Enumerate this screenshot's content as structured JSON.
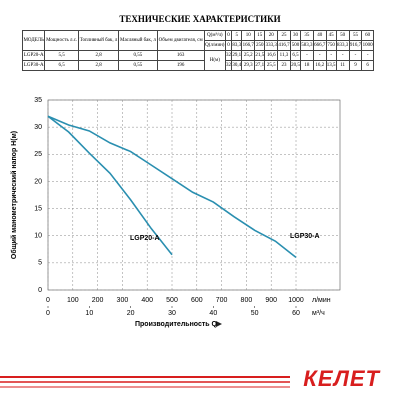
{
  "document": {
    "title": "ТЕХНИЧЕСКИЕ ХАРАКТЕРИСТИКИ",
    "table": {
      "header": [
        "МОДЕЛЬ",
        "Мощность л.с.",
        "Топливный бак, л",
        "Масляный бак, л",
        "Объем двигателя, см"
      ],
      "q_m3h_label": "Q(м³/ч)",
      "q_m3h": [
        "0",
        "5",
        "10",
        "15",
        "20",
        "25",
        "30",
        "35",
        "40",
        "45",
        "50",
        "55",
        "60"
      ],
      "q_lmin_label": "Q(л/мин)",
      "q_lmin": [
        "0",
        "83,3",
        "166,7",
        "250",
        "333,3",
        "416,7",
        "500",
        "583,3",
        "666,7",
        "750",
        "833,3",
        "916,7",
        "1000"
      ],
      "h_label": "H(м)",
      "rows": [
        [
          "LGP20-A",
          "5,5",
          "2,8",
          "0,55",
          "163",
          "32",
          "29,1",
          "25,2",
          "21,5",
          "16,6",
          "11,3",
          "6,5",
          "-",
          "-",
          "-",
          "-",
          "-",
          "-"
        ],
        [
          "LGP30-A",
          "6,5",
          "2,8",
          "0,55",
          "196",
          "32",
          "30,4",
          "29,3",
          "27,1",
          "25,5",
          "23",
          "20,5",
          "18",
          "16,2",
          "13,5",
          "11",
          "9",
          "6"
        ]
      ]
    },
    "logo": "КЕЛЕТ"
  },
  "chart_data": {
    "type": "line",
    "xlabel": "Производительность Q",
    "ylabel": "Общий манометрический напор H(м)",
    "x_unit": "л/мин",
    "x2_unit": "м³/ч",
    "x": [
      0,
      83.3,
      166.7,
      250,
      333.3,
      416.7,
      500,
      583.3,
      666.7,
      750,
      833.3,
      916.7,
      1000
    ],
    "xlim": [
      0,
      1000
    ],
    "xticks": [
      0,
      100,
      200,
      300,
      400,
      500,
      600,
      700,
      800,
      900,
      1000
    ],
    "x2lim": [
      0,
      60
    ],
    "x2ticks": [
      0,
      10,
      20,
      30,
      40,
      50,
      60
    ],
    "ylim": [
      0,
      35
    ],
    "yticks": [
      0,
      5,
      10,
      15,
      20,
      25,
      30,
      35
    ],
    "grid": true,
    "series": [
      {
        "name": "LGP20-A",
        "color": "#2a8fb0",
        "values": [
          32,
          29.1,
          25.2,
          21.5,
          16.6,
          11.3,
          6.5,
          null,
          null,
          null,
          null,
          null,
          null
        ]
      },
      {
        "name": "LGP30-A",
        "color": "#2a8fb0",
        "values": [
          32,
          30.4,
          29.3,
          27.1,
          25.5,
          23,
          20.5,
          18,
          16.2,
          13.5,
          11,
          9,
          6
        ]
      }
    ]
  }
}
